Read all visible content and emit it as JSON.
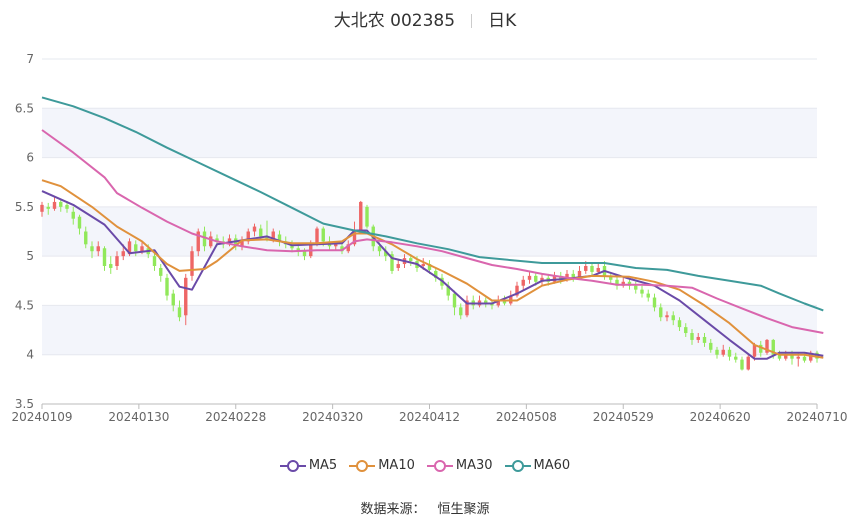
{
  "title": {
    "stock": "大北农 002385",
    "period": "日K"
  },
  "source": {
    "label": "数据来源：",
    "value": "恒生聚源"
  },
  "colors": {
    "up": "#ee6666",
    "down": "#91e85a",
    "MA5": "#6a4aa8",
    "MA10": "#e0913c",
    "MA30": "#d966ae",
    "MA60": "#3e9a9a"
  },
  "chart_data": {
    "type": "candlestick",
    "ylim": [
      3.5,
      7
    ],
    "yticks": [
      "7",
      "6.5",
      "6",
      "5.5",
      "5",
      "4.5",
      "4",
      "3.5"
    ],
    "xticks": [
      "20240109",
      "20240130",
      "20240228",
      "20240320",
      "20240412",
      "20240508",
      "20240529",
      "20240620",
      "20240710"
    ],
    "legend": [
      "MA5",
      "MA10",
      "MA30",
      "MA60"
    ],
    "legend_position": "bottom",
    "series": [
      {
        "name": "MA5",
        "points": [
          [
            0,
            5.66
          ],
          [
            5,
            5.52
          ],
          [
            10,
            5.32
          ],
          [
            14,
            5.03
          ],
          [
            18,
            5.06
          ],
          [
            22,
            4.69
          ],
          [
            24,
            4.66
          ],
          [
            28,
            5.12
          ],
          [
            32,
            5.16
          ],
          [
            36,
            5.2
          ],
          [
            40,
            5.11
          ],
          [
            44,
            5.12
          ],
          [
            48,
            5.13
          ],
          [
            50,
            5.26
          ],
          [
            52,
            5.26
          ],
          [
            56,
            4.98
          ],
          [
            60,
            4.92
          ],
          [
            64,
            4.75
          ],
          [
            68,
            4.52
          ],
          [
            72,
            4.52
          ],
          [
            76,
            4.62
          ],
          [
            80,
            4.75
          ],
          [
            84,
            4.77
          ],
          [
            88,
            4.8
          ],
          [
            90,
            4.85
          ],
          [
            94,
            4.77
          ],
          [
            98,
            4.7
          ],
          [
            102,
            4.55
          ],
          [
            106,
            4.35
          ],
          [
            110,
            4.15
          ],
          [
            114,
            3.96
          ],
          [
            116,
            3.96
          ],
          [
            118,
            4.02
          ],
          [
            122,
            4.02
          ],
          [
            125,
            3.99
          ]
        ]
      },
      {
        "name": "MA10",
        "points": [
          [
            0,
            5.77
          ],
          [
            3,
            5.71
          ],
          [
            8,
            5.5
          ],
          [
            12,
            5.3
          ],
          [
            16,
            5.15
          ],
          [
            20,
            4.92
          ],
          [
            22,
            4.85
          ],
          [
            26,
            4.87
          ],
          [
            28,
            4.95
          ],
          [
            32,
            5.16
          ],
          [
            36,
            5.17
          ],
          [
            40,
            5.13
          ],
          [
            44,
            5.13
          ],
          [
            48,
            5.15
          ],
          [
            50,
            5.23
          ],
          [
            52,
            5.23
          ],
          [
            56,
            5.12
          ],
          [
            60,
            4.97
          ],
          [
            64,
            4.85
          ],
          [
            68,
            4.72
          ],
          [
            72,
            4.55
          ],
          [
            76,
            4.55
          ],
          [
            80,
            4.7
          ],
          [
            84,
            4.76
          ],
          [
            88,
            4.8
          ],
          [
            94,
            4.79
          ],
          [
            98,
            4.74
          ],
          [
            102,
            4.66
          ],
          [
            106,
            4.5
          ],
          [
            110,
            4.32
          ],
          [
            114,
            4.1
          ],
          [
            118,
            4.0
          ],
          [
            122,
            4.0
          ],
          [
            125,
            3.97
          ]
        ]
      },
      {
        "name": "MA30",
        "points": [
          [
            0,
            6.28
          ],
          [
            5,
            6.05
          ],
          [
            10,
            5.8
          ],
          [
            12,
            5.64
          ],
          [
            16,
            5.49
          ],
          [
            20,
            5.35
          ],
          [
            24,
            5.23
          ],
          [
            28,
            5.15
          ],
          [
            32,
            5.1
          ],
          [
            36,
            5.06
          ],
          [
            40,
            5.05
          ],
          [
            44,
            5.06
          ],
          [
            48,
            5.06
          ],
          [
            50,
            5.15
          ],
          [
            52,
            5.17
          ],
          [
            56,
            5.14
          ],
          [
            60,
            5.1
          ],
          [
            64,
            5.05
          ],
          [
            68,
            4.98
          ],
          [
            72,
            4.91
          ],
          [
            76,
            4.87
          ],
          [
            80,
            4.82
          ],
          [
            84,
            4.78
          ],
          [
            88,
            4.75
          ],
          [
            92,
            4.71
          ],
          [
            96,
            4.71
          ],
          [
            100,
            4.7
          ],
          [
            104,
            4.68
          ],
          [
            108,
            4.57
          ],
          [
            112,
            4.47
          ],
          [
            116,
            4.37
          ],
          [
            120,
            4.28
          ],
          [
            125,
            4.22
          ]
        ]
      },
      {
        "name": "MA60",
        "points": [
          [
            0,
            6.61
          ],
          [
            5,
            6.52
          ],
          [
            10,
            6.4
          ],
          [
            15,
            6.26
          ],
          [
            20,
            6.1
          ],
          [
            25,
            5.95
          ],
          [
            30,
            5.8
          ],
          [
            35,
            5.65
          ],
          [
            40,
            5.49
          ],
          [
            45,
            5.33
          ],
          [
            50,
            5.26
          ],
          [
            55,
            5.2
          ],
          [
            60,
            5.13
          ],
          [
            65,
            5.07
          ],
          [
            70,
            4.99
          ],
          [
            75,
            4.96
          ],
          [
            80,
            4.93
          ],
          [
            85,
            4.93
          ],
          [
            90,
            4.93
          ],
          [
            95,
            4.88
          ],
          [
            100,
            4.86
          ],
          [
            105,
            4.8
          ],
          [
            110,
            4.75
          ],
          [
            115,
            4.7
          ],
          [
            118,
            4.62
          ],
          [
            122,
            4.52
          ],
          [
            125,
            4.45
          ]
        ]
      }
    ],
    "candles": [
      [
        5.45,
        5.52,
        5.55,
        5.4
      ],
      [
        5.5,
        5.48,
        5.54,
        5.42
      ],
      [
        5.48,
        5.55,
        5.6,
        5.46
      ],
      [
        5.55,
        5.5,
        5.58,
        5.45
      ],
      [
        5.52,
        5.48,
        5.56,
        5.44
      ],
      [
        5.45,
        5.38,
        5.5,
        5.32
      ],
      [
        5.4,
        5.28,
        5.42,
        5.22
      ],
      [
        5.25,
        5.12,
        5.3,
        5.08
      ],
      [
        5.1,
        5.05,
        5.15,
        4.98
      ],
      [
        5.05,
        5.1,
        5.15,
        5.0
      ],
      [
        5.08,
        4.9,
        5.1,
        4.85
      ],
      [
        4.92,
        4.88,
        5.0,
        4.82
      ],
      [
        4.9,
        5.0,
        5.05,
        4.86
      ],
      [
        5.0,
        5.05,
        5.12,
        4.96
      ],
      [
        5.02,
        5.15,
        5.18,
        5.0
      ],
      [
        5.12,
        5.05,
        5.16,
        5.0
      ],
      [
        5.05,
        5.1,
        5.14,
        5.02
      ],
      [
        5.08,
        5.02,
        5.12,
        4.98
      ],
      [
        5.0,
        4.9,
        5.05,
        4.85
      ],
      [
        4.88,
        4.8,
        4.92,
        4.74
      ],
      [
        4.78,
        4.6,
        4.82,
        4.55
      ],
      [
        4.62,
        4.5,
        4.66,
        4.44
      ],
      [
        4.48,
        4.38,
        4.55,
        4.34
      ],
      [
        4.4,
        4.78,
        4.82,
        4.3
      ],
      [
        4.8,
        5.05,
        5.1,
        4.75
      ],
      [
        5.05,
        5.25,
        5.28,
        5.0
      ],
      [
        5.25,
        5.1,
        5.3,
        5.05
      ],
      [
        5.1,
        5.2,
        5.25,
        5.08
      ],
      [
        5.18,
        5.15,
        5.22,
        5.1
      ],
      [
        5.15,
        5.12,
        5.2,
        5.08
      ],
      [
        5.12,
        5.18,
        5.22,
        5.1
      ],
      [
        5.18,
        5.1,
        5.22,
        5.06
      ],
      [
        5.1,
        5.15,
        5.2,
        5.06
      ],
      [
        5.15,
        5.25,
        5.28,
        5.12
      ],
      [
        5.25,
        5.3,
        5.33,
        5.2
      ],
      [
        5.28,
        5.2,
        5.32,
        5.16
      ],
      [
        5.2,
        5.18,
        5.36,
        5.15
      ],
      [
        5.18,
        5.25,
        5.28,
        5.14
      ],
      [
        5.22,
        5.15,
        5.26,
        5.1
      ],
      [
        5.15,
        5.12,
        5.2,
        5.08
      ],
      [
        5.12,
        5.08,
        5.16,
        5.04
      ],
      [
        5.08,
        5.05,
        5.12,
        5.0
      ],
      [
        5.05,
        5.0,
        5.08,
        4.96
      ],
      [
        5.0,
        5.12,
        5.16,
        4.98
      ],
      [
        5.12,
        5.28,
        5.3,
        5.1
      ],
      [
        5.28,
        5.15,
        5.3,
        5.1
      ],
      [
        5.15,
        5.1,
        5.2,
        5.06
      ],
      [
        5.1,
        5.12,
        5.15,
        5.06
      ],
      [
        5.1,
        5.05,
        5.14,
        5.02
      ],
      [
        5.05,
        5.12,
        5.16,
        5.03
      ],
      [
        5.12,
        5.25,
        5.35,
        5.1
      ],
      [
        5.25,
        5.55,
        5.56,
        5.22
      ],
      [
        5.5,
        5.3,
        5.52,
        5.28
      ],
      [
        5.3,
        5.1,
        5.32,
        5.05
      ],
      [
        5.1,
        5.05,
        5.14,
        5.0
      ],
      [
        5.05,
        5.0,
        5.1,
        4.95
      ],
      [
        5.02,
        4.85,
        5.05,
        4.82
      ],
      [
        4.88,
        4.92,
        4.96,
        4.85
      ],
      [
        4.92,
        4.98,
        5.02,
        4.88
      ],
      [
        4.98,
        4.95,
        5.02,
        4.9
      ],
      [
        4.95,
        4.88,
        5.0,
        4.84
      ],
      [
        4.9,
        4.92,
        4.98,
        4.86
      ],
      [
        4.92,
        4.86,
        4.96,
        4.82
      ],
      [
        4.85,
        4.78,
        4.88,
        4.74
      ],
      [
        4.78,
        4.7,
        4.82,
        4.66
      ],
      [
        4.7,
        4.6,
        4.74,
        4.55
      ],
      [
        4.62,
        4.48,
        4.65,
        4.4
      ],
      [
        4.48,
        4.4,
        4.52,
        4.36
      ],
      [
        4.4,
        4.55,
        4.6,
        4.38
      ],
      [
        4.55,
        4.5,
        4.6,
        4.46
      ],
      [
        4.5,
        4.55,
        4.6,
        4.48
      ],
      [
        4.55,
        4.52,
        4.58,
        4.48
      ],
      [
        4.52,
        4.5,
        4.56,
        4.46
      ],
      [
        4.5,
        4.55,
        4.6,
        4.48
      ],
      [
        4.55,
        4.52,
        4.6,
        4.5
      ],
      [
        4.52,
        4.6,
        4.65,
        4.5
      ],
      [
        4.6,
        4.7,
        4.74,
        4.58
      ],
      [
        4.7,
        4.76,
        4.8,
        4.66
      ],
      [
        4.76,
        4.8,
        4.84,
        4.72
      ],
      [
        4.8,
        4.74,
        4.84,
        4.7
      ],
      [
        4.74,
        4.78,
        4.82,
        4.7
      ],
      [
        4.78,
        4.74,
        4.82,
        4.7
      ],
      [
        4.74,
        4.8,
        4.84,
        4.72
      ],
      [
        4.8,
        4.76,
        4.84,
        4.72
      ],
      [
        4.76,
        4.82,
        4.86,
        4.74
      ],
      [
        4.82,
        4.78,
        4.86,
        4.74
      ],
      [
        4.78,
        4.85,
        4.9,
        4.76
      ],
      [
        4.85,
        4.9,
        4.95,
        4.82
      ],
      [
        4.9,
        4.84,
        4.94,
        4.8
      ],
      [
        4.84,
        4.88,
        4.94,
        4.82
      ],
      [
        4.9,
        4.8,
        4.95,
        4.76
      ],
      [
        4.8,
        4.76,
        4.84,
        4.72
      ],
      [
        4.76,
        4.7,
        4.8,
        4.66
      ],
      [
        4.7,
        4.74,
        4.78,
        4.68
      ],
      [
        4.74,
        4.7,
        4.78,
        4.66
      ],
      [
        4.7,
        4.66,
        4.74,
        4.62
      ],
      [
        4.66,
        4.62,
        4.7,
        4.58
      ],
      [
        4.62,
        4.58,
        4.66,
        4.54
      ],
      [
        4.58,
        4.48,
        4.62,
        4.44
      ],
      [
        4.48,
        4.38,
        4.52,
        4.34
      ],
      [
        4.38,
        4.4,
        4.44,
        4.34
      ],
      [
        4.4,
        4.35,
        4.44,
        4.3
      ],
      [
        4.35,
        4.28,
        4.38,
        4.24
      ],
      [
        4.28,
        4.22,
        4.32,
        4.18
      ],
      [
        4.22,
        4.15,
        4.26,
        4.1
      ],
      [
        4.15,
        4.18,
        4.22,
        4.12
      ],
      [
        4.18,
        4.12,
        4.22,
        4.08
      ],
      [
        4.12,
        4.05,
        4.16,
        4.02
      ],
      [
        4.05,
        4.0,
        4.08,
        3.96
      ],
      [
        4.0,
        4.05,
        4.1,
        3.98
      ],
      [
        4.05,
        3.98,
        4.08,
        3.94
      ],
      [
        3.98,
        3.95,
        4.02,
        3.92
      ],
      [
        3.95,
        3.85,
        3.98,
        3.84
      ],
      [
        3.85,
        3.98,
        4.0,
        3.84
      ],
      [
        3.98,
        4.1,
        4.12,
        3.94
      ],
      [
        4.1,
        4.02,
        4.14,
        3.98
      ],
      [
        4.02,
        4.15,
        4.16,
        4.0
      ],
      [
        4.15,
        4.0,
        4.16,
        3.96
      ],
      [
        4.0,
        3.96,
        4.04,
        3.94
      ],
      [
        3.96,
        4.0,
        4.04,
        3.94
      ],
      [
        4.0,
        3.96,
        4.04,
        3.9
      ],
      [
        3.96,
        3.98,
        4.02,
        3.88
      ],
      [
        3.98,
        3.94,
        4.02,
        3.92
      ],
      [
        3.94,
        4.02,
        4.04,
        3.92
      ],
      [
        4.02,
        3.96,
        4.04,
        3.92
      ]
    ]
  }
}
